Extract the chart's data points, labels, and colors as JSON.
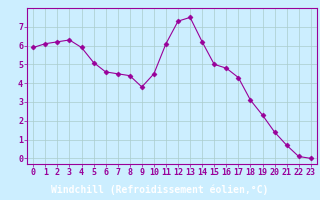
{
  "x": [
    0,
    1,
    2,
    3,
    4,
    5,
    6,
    7,
    8,
    9,
    10,
    11,
    12,
    13,
    14,
    15,
    16,
    17,
    18,
    19,
    20,
    21,
    22,
    23
  ],
  "y": [
    5.9,
    6.1,
    6.2,
    6.3,
    5.9,
    5.1,
    4.6,
    4.5,
    4.4,
    3.8,
    4.5,
    6.1,
    7.3,
    7.5,
    6.2,
    5.0,
    4.8,
    4.3,
    3.1,
    2.3,
    1.4,
    0.7,
    0.1,
    0.0
  ],
  "line_color": "#990099",
  "marker": "D",
  "marker_size": 2.5,
  "bg_color": "#cceeff",
  "grid_color": "#aacccc",
  "xlabel": "Windchill (Refroidissement éolien,°C)",
  "xlabel_color": "#ffffff",
  "xlabel_bg": "#660066",
  "ylabel_ticks": [
    0,
    1,
    2,
    3,
    4,
    5,
    6,
    7
  ],
  "xtick_labels": [
    "0",
    "1",
    "2",
    "3",
    "4",
    "5",
    "6",
    "7",
    "8",
    "9",
    "10",
    "11",
    "12",
    "13",
    "14",
    "15",
    "16",
    "17",
    "18",
    "19",
    "20",
    "21",
    "22",
    "23"
  ],
  "ylim": [
    -0.3,
    8.0
  ],
  "xlim": [
    -0.5,
    23.5
  ],
  "tick_color": "#990099",
  "tick_label_color": "#990099",
  "spine_color": "#990099",
  "label_fontsize": 7,
  "tick_fontsize": 6
}
